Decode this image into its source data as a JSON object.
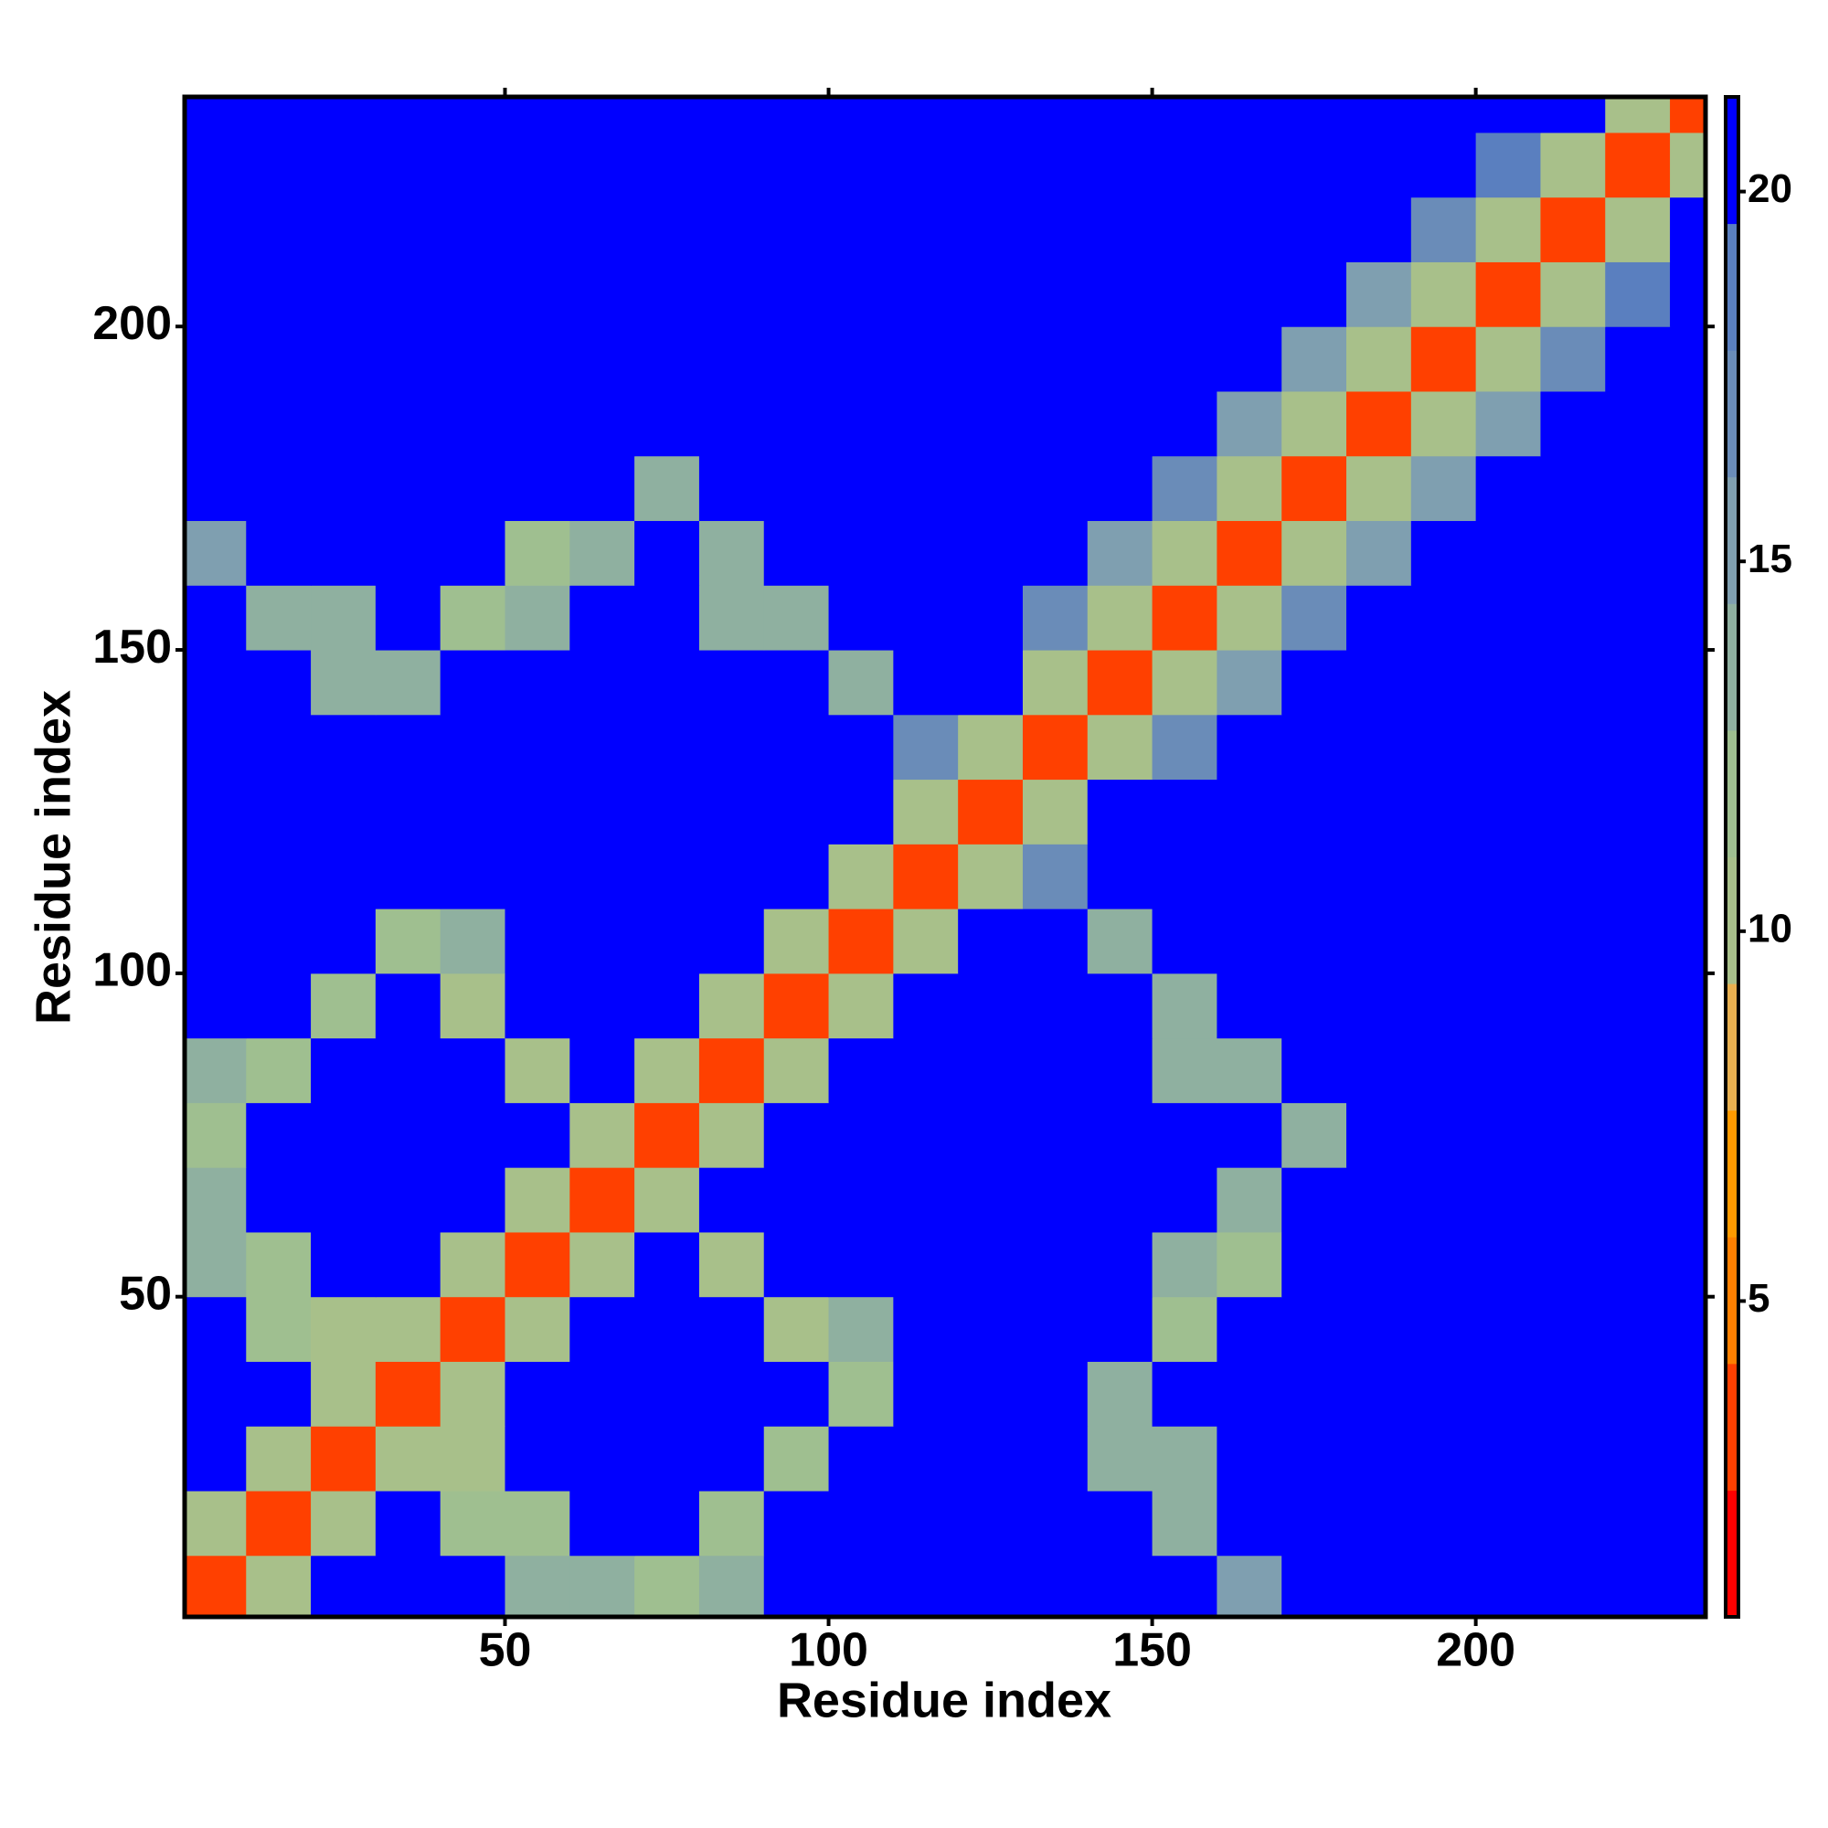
{
  "chart_data": {
    "type": "heatmap",
    "x_label": "Residue index",
    "y_label": "Residue index",
    "x": [
      5,
      15,
      25,
      35,
      45,
      55,
      65,
      75,
      85,
      95,
      105,
      115,
      125,
      135,
      145,
      155,
      165,
      175,
      185,
      195,
      205,
      215,
      225,
      235
    ],
    "y": [
      5,
      15,
      25,
      35,
      45,
      55,
      65,
      75,
      85,
      95,
      105,
      115,
      125,
      135,
      145,
      155,
      165,
      175,
      185,
      195,
      205,
      215,
      225,
      235
    ],
    "z": [
      [
        3,
        10,
        21,
        21,
        21,
        13,
        13,
        12,
        13,
        21,
        21,
        21,
        21,
        21,
        21,
        21,
        15,
        21,
        21,
        21,
        21,
        21,
        21,
        21
      ],
      [
        10,
        3,
        10,
        21,
        12,
        12,
        21,
        21,
        12,
        21,
        21,
        21,
        21,
        21,
        21,
        13,
        21,
        21,
        21,
        21,
        21,
        21,
        21,
        21
      ],
      [
        21,
        10,
        3,
        10,
        10,
        21,
        21,
        21,
        21,
        12,
        21,
        21,
        21,
        21,
        13,
        13,
        21,
        21,
        21,
        21,
        21,
        21,
        21,
        21
      ],
      [
        21,
        21,
        10,
        3,
        10,
        21,
        21,
        21,
        21,
        21,
        12,
        21,
        21,
        21,
        13,
        21,
        21,
        21,
        21,
        21,
        21,
        21,
        21,
        21
      ],
      [
        21,
        12,
        10,
        10,
        3,
        10,
        21,
        21,
        21,
        11,
        13,
        21,
        21,
        21,
        21,
        12,
        21,
        21,
        21,
        21,
        21,
        21,
        21,
        21
      ],
      [
        13,
        12,
        21,
        21,
        10,
        3,
        10,
        21,
        11,
        21,
        21,
        21,
        21,
        21,
        21,
        13,
        12,
        21,
        21,
        21,
        21,
        21,
        21,
        21
      ],
      [
        13,
        21,
        21,
        21,
        21,
        10,
        3,
        10,
        21,
        21,
        21,
        21,
        21,
        21,
        21,
        21,
        13,
        21,
        21,
        21,
        21,
        21,
        21,
        21
      ],
      [
        12,
        21,
        21,
        21,
        21,
        21,
        10,
        3,
        10,
        21,
        21,
        21,
        21,
        21,
        21,
        21,
        21,
        14,
        21,
        21,
        21,
        21,
        21,
        21
      ],
      [
        13,
        12,
        21,
        21,
        21,
        11,
        21,
        10,
        3,
        10,
        21,
        21,
        21,
        21,
        21,
        14,
        13,
        21,
        21,
        21,
        21,
        21,
        21,
        21
      ],
      [
        21,
        21,
        12,
        21,
        11,
        21,
        21,
        21,
        10,
        3,
        10,
        21,
        21,
        21,
        21,
        14,
        21,
        21,
        21,
        21,
        21,
        21,
        21,
        21
      ],
      [
        21,
        21,
        21,
        12,
        13,
        21,
        21,
        21,
        21,
        10,
        3,
        10,
        21,
        21,
        14,
        21,
        21,
        21,
        21,
        21,
        21,
        21,
        21,
        21
      ],
      [
        21,
        21,
        21,
        21,
        21,
        21,
        21,
        21,
        21,
        21,
        10,
        3,
        10,
        17,
        21,
        21,
        21,
        21,
        21,
        21,
        21,
        21,
        21,
        21
      ],
      [
        21,
        21,
        21,
        21,
        21,
        21,
        21,
        21,
        21,
        21,
        21,
        10,
        3,
        10,
        21,
        21,
        21,
        21,
        21,
        21,
        21,
        21,
        21,
        21
      ],
      [
        21,
        21,
        21,
        21,
        21,
        21,
        21,
        21,
        21,
        21,
        21,
        17,
        10,
        3,
        10,
        17,
        21,
        21,
        21,
        21,
        21,
        21,
        21,
        21
      ],
      [
        21,
        21,
        13,
        13,
        21,
        21,
        21,
        21,
        21,
        21,
        14,
        21,
        21,
        10,
        3,
        10,
        16,
        21,
        21,
        21,
        21,
        21,
        21,
        21
      ],
      [
        21,
        13,
        13,
        21,
        12,
        13,
        21,
        21,
        14,
        14,
        21,
        21,
        21,
        17,
        10,
        3,
        10,
        17,
        21,
        21,
        21,
        21,
        21,
        21
      ],
      [
        15,
        21,
        21,
        21,
        21,
        12,
        13,
        21,
        13,
        21,
        21,
        21,
        21,
        21,
        16,
        10,
        3,
        10,
        16,
        21,
        21,
        21,
        21,
        21
      ],
      [
        21,
        21,
        21,
        21,
        21,
        21,
        21,
        14,
        21,
        21,
        21,
        21,
        21,
        21,
        21,
        17,
        10,
        3,
        10,
        16,
        21,
        21,
        21,
        21
      ],
      [
        21,
        21,
        21,
        21,
        21,
        21,
        21,
        21,
        21,
        21,
        21,
        21,
        21,
        21,
        21,
        21,
        16,
        10,
        3,
        10,
        16,
        21,
        21,
        21
      ],
      [
        21,
        21,
        21,
        21,
        21,
        21,
        21,
        21,
        21,
        21,
        21,
        21,
        21,
        21,
        21,
        21,
        21,
        16,
        10,
        3,
        10,
        17,
        21,
        21
      ],
      [
        21,
        21,
        21,
        21,
        21,
        21,
        21,
        21,
        21,
        21,
        21,
        21,
        21,
        21,
        21,
        21,
        21,
        21,
        16,
        10,
        3,
        10,
        18,
        21
      ],
      [
        21,
        21,
        21,
        21,
        21,
        21,
        21,
        21,
        21,
        21,
        21,
        21,
        21,
        21,
        21,
        21,
        21,
        21,
        21,
        17,
        10,
        3,
        10,
        21
      ],
      [
        21,
        21,
        21,
        21,
        21,
        21,
        21,
        21,
        21,
        21,
        21,
        21,
        21,
        21,
        21,
        21,
        21,
        21,
        21,
        21,
        18,
        10,
        3,
        10
      ],
      [
        21,
        21,
        21,
        21,
        21,
        21,
        21,
        21,
        21,
        21,
        21,
        21,
        21,
        21,
        21,
        21,
        21,
        21,
        21,
        21,
        21,
        21,
        10,
        3
      ]
    ],
    "xlim": [
      0.5,
      235.5
    ],
    "ylim": [
      0.5,
      235.5
    ],
    "xticks": [
      50,
      100,
      150,
      200
    ],
    "yticks": [
      50,
      100,
      150,
      200
    ],
    "zlim": [
      0.73,
      21.28
    ],
    "zticks": [
      5,
      10,
      15,
      20
    ],
    "colorscale": [
      "#ff0000",
      "#ff4000",
      "#ff8000",
      "#ff9a00",
      "#e8b050",
      "#a8c08a",
      "#9fbf90",
      "#8fb0a0",
      "#7f9fb0",
      "#6a8cb8",
      "#5a7fbf",
      "#0000ff"
    ]
  }
}
